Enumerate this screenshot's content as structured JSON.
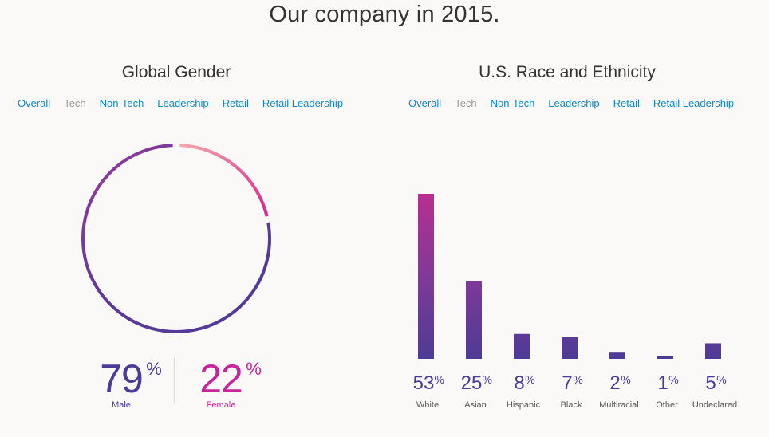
{
  "page": {
    "title": "Our company in 2015."
  },
  "gender": {
    "title": "Global Gender",
    "tabs": [
      {
        "label": "Overall",
        "active": false
      },
      {
        "label": "Tech",
        "active": true
      },
      {
        "label": "Non-Tech",
        "active": false
      },
      {
        "label": "Leadership",
        "active": false
      },
      {
        "label": "Retail",
        "active": false
      },
      {
        "label": "Retail Leadership",
        "active": false
      }
    ],
    "male": {
      "value": "79",
      "unit": "%",
      "label": "Male"
    },
    "female": {
      "value": "22",
      "unit": "%",
      "label": "Female"
    }
  },
  "race": {
    "title": "U.S. Race and Ethnicity",
    "tabs": [
      {
        "label": "Overall",
        "active": false
      },
      {
        "label": "Tech",
        "active": true
      },
      {
        "label": "Non-Tech",
        "active": false
      },
      {
        "label": "Leadership",
        "active": false
      },
      {
        "label": "Retail",
        "active": false
      },
      {
        "label": "Retail Leadership",
        "active": false
      }
    ]
  },
  "colors": {
    "link": "#0d88c1",
    "male": "#4e3b96",
    "female": "#c7259c",
    "pink_light": "#f0a8ac",
    "purple_dark": "#4e3b96"
  },
  "chart_data": [
    {
      "type": "pie",
      "title": "Global Gender",
      "categories": [
        "Male",
        "Female"
      ],
      "values": [
        79,
        22
      ],
      "unit": "%"
    },
    {
      "type": "bar",
      "title": "U.S. Race and Ethnicity",
      "categories": [
        "White",
        "Asian",
        "Hispanic",
        "Black",
        "Multiracial",
        "Other",
        "Undeclared"
      ],
      "values": [
        53,
        25,
        8,
        7,
        2,
        1,
        5
      ],
      "unit": "%",
      "ylim": [
        0,
        53
      ]
    }
  ]
}
